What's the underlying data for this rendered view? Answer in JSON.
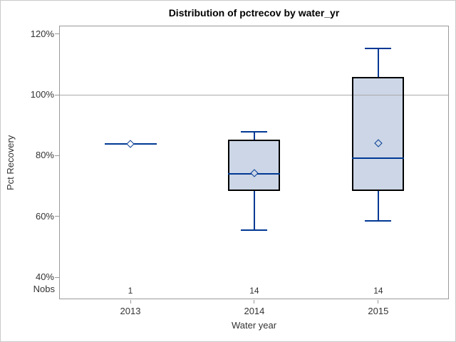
{
  "chart_data": {
    "type": "box",
    "title": "Distribution of pctrecov by water_yr",
    "xlabel": "Water year",
    "ylabel": "Pct Recovery",
    "nobs_label": "Nobs",
    "categories": [
      "2013",
      "2014",
      "2015"
    ],
    "nobs": [
      "1",
      "14",
      "14"
    ],
    "y_ticks": [
      40,
      60,
      80,
      100,
      120
    ],
    "y_tick_labels": [
      "40%",
      "60%",
      "80%",
      "100%",
      "120%"
    ],
    "ylim": [
      32.5,
      122.5
    ],
    "reference_line": 100,
    "grid": "reference line at 100% only",
    "legend": "none",
    "series": [
      {
        "category": "2013",
        "n": 1,
        "low": null,
        "q1": null,
        "median": 83.8,
        "q3": null,
        "high": null,
        "mean": 83.8
      },
      {
        "category": "2014",
        "n": 14,
        "low": 55.5,
        "q1": 68.3,
        "median": 73.9,
        "q3": 85.3,
        "high": 87.7,
        "mean": 74.2
      },
      {
        "category": "2015",
        "n": 14,
        "low": 58.6,
        "q1": 68.4,
        "median": 79.2,
        "q3": 105.8,
        "high": 115.3,
        "mean": 84.1
      }
    ],
    "colors": {
      "box_fill": "#ccd6e6",
      "box_border": "#000000",
      "whisker": "#003893",
      "frame": "#999999",
      "reference_line": "#ababab",
      "text": "#333333",
      "figure_border": "#c9c9c9",
      "background": "#ffffff"
    }
  }
}
